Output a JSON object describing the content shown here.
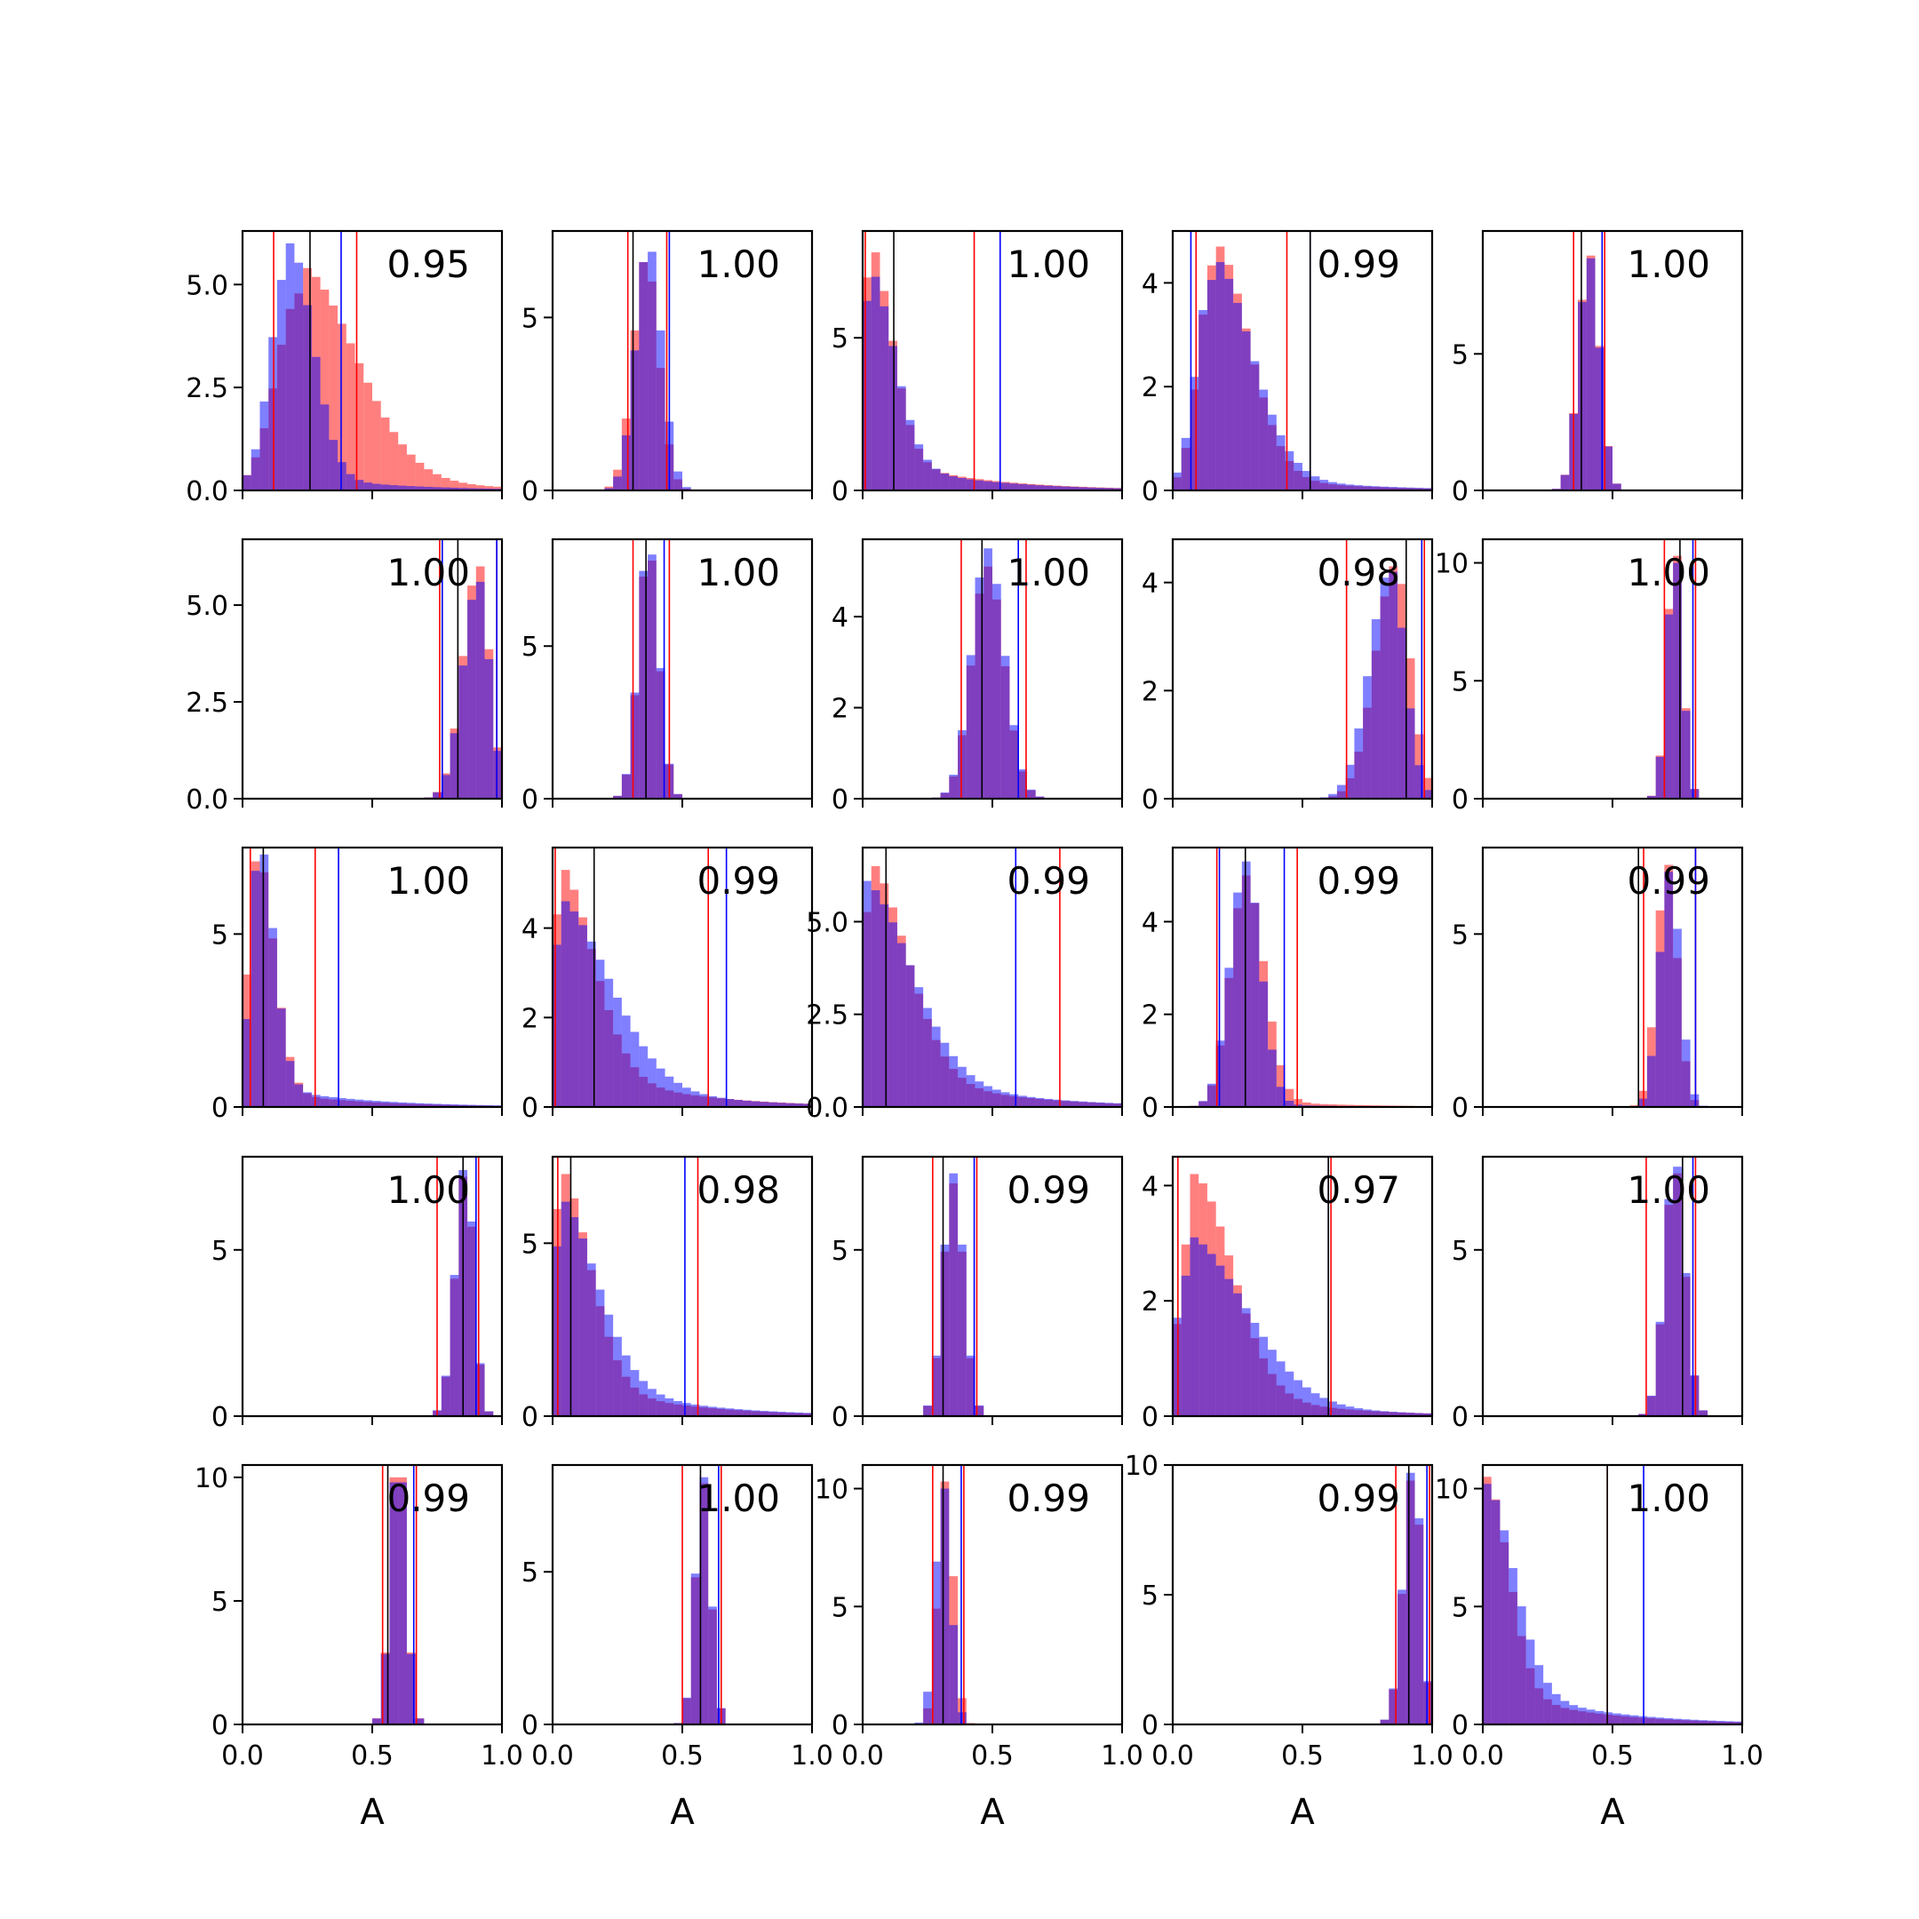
{
  "chart_data": {
    "type": "histogram-grid",
    "rows": 5,
    "cols": 5,
    "xlabel": "A",
    "xlim": [
      0.0,
      1.0
    ],
    "xticks": [
      0.0,
      0.5,
      1.0
    ],
    "xtick_labels": [
      "0.0",
      "0.5",
      "1.0"
    ],
    "grid": false,
    "series_colors": {
      "red": "#ff0000",
      "blue": "#0000ff",
      "black": "#000000"
    },
    "panels": [
      {
        "corr": "0.95",
        "ylim": [
          0,
          6.3
        ],
        "yticks": [
          0,
          2.5,
          5
        ],
        "ytick_labels": [
          "0.0",
          "2.5",
          "5.0"
        ],
        "red": {
          "center": 0.22,
          "width": 0.09,
          "peak": 5.4,
          "skew": 2.4,
          "tail": 0.25
        },
        "blue": {
          "center": 0.18,
          "width": 0.07,
          "peak": 6.0,
          "skew": 1.3,
          "tail": 0.12
        },
        "lines": {
          "red": [
            0.12,
            0.44
          ],
          "blue": [
            0.38
          ],
          "black": [
            0.26
          ]
        }
      },
      {
        "corr": "1.00",
        "ylim": [
          0,
          7.5
        ],
        "yticks": [
          0,
          5
        ],
        "ytick_labels": [
          "0",
          "5"
        ],
        "red": {
          "center": 0.36,
          "width": 0.05,
          "peak": 6.6,
          "skew": 1.0,
          "tail": 0
        },
        "blue": {
          "center": 0.37,
          "width": 0.05,
          "peak": 6.9,
          "skew": 1.0,
          "tail": 0
        },
        "lines": {
          "red": [
            0.29,
            0.44
          ],
          "blue": [
            0.45
          ],
          "black": [
            0.31
          ]
        }
      },
      {
        "corr": "1.00",
        "ylim": [
          0,
          8.5
        ],
        "yticks": [
          0,
          5
        ],
        "ytick_labels": [
          "0",
          "5"
        ],
        "red": {
          "center": 0.02,
          "width": 0.03,
          "peak": 7.8,
          "skew": 3.0,
          "tail": 0.3
        },
        "blue": {
          "center": 0.02,
          "width": 0.03,
          "peak": 7.0,
          "skew": 3.3,
          "tail": 0.3
        },
        "lines": {
          "red": [
            0.01,
            0.43
          ],
          "blue": [
            0.53
          ],
          "black": [
            0.12
          ]
        }
      },
      {
        "corr": "0.99",
        "ylim": [
          0,
          5.0
        ],
        "yticks": [
          0,
          2,
          4
        ],
        "ytick_labels": [
          "0",
          "2",
          "4"
        ],
        "red": {
          "center": 0.16,
          "width": 0.06,
          "peak": 4.7,
          "skew": 2.2,
          "tail": 0.15
        },
        "blue": {
          "center": 0.15,
          "width": 0.06,
          "peak": 4.4,
          "skew": 2.5,
          "tail": 0.2
        },
        "lines": {
          "red": [
            0.09,
            0.44
          ],
          "blue": [
            0.07,
            0.53
          ],
          "black": [
            0.53
          ]
        }
      },
      {
        "corr": "1.00",
        "ylim": [
          0,
          9.5
        ],
        "yticks": [
          0,
          5
        ],
        "ytick_labels": [
          "0",
          "5"
        ],
        "red": {
          "center": 0.41,
          "width": 0.04,
          "peak": 8.6,
          "skew": 1.0,
          "tail": 0
        },
        "blue": {
          "center": 0.41,
          "width": 0.04,
          "peak": 8.5,
          "skew": 1.0,
          "tail": 0
        },
        "lines": {
          "red": [
            0.35,
            0.47
          ],
          "blue": [
            0.46
          ],
          "black": [
            0.38
          ]
        }
      },
      {
        "corr": "1.00",
        "ylim": [
          0,
          6.7
        ],
        "yticks": [
          0,
          2.5,
          5
        ],
        "ytick_labels": [
          "0.0",
          "2.5",
          "5.0"
        ],
        "red": {
          "center": 0.91,
          "width": 0.06,
          "peak": 6.0,
          "skew": 0.7,
          "tail": 0
        },
        "blue": {
          "center": 0.91,
          "width": 0.06,
          "peak": 5.6,
          "skew": 0.7,
          "tail": 0
        },
        "lines": {
          "red": [
            0.76,
            0.98
          ],
          "blue": [
            0.77,
            0.98
          ],
          "black": [
            0.83
          ]
        }
      },
      {
        "corr": "1.00",
        "ylim": [
          0,
          8.5
        ],
        "yticks": [
          0,
          5
        ],
        "ytick_labels": [
          "0",
          "5"
        ],
        "red": {
          "center": 0.37,
          "width": 0.04,
          "peak": 7.8,
          "skew": 1.0,
          "tail": 0
        },
        "blue": {
          "center": 0.37,
          "width": 0.04,
          "peak": 8.0,
          "skew": 1.0,
          "tail": 0
        },
        "lines": {
          "red": [
            0.31,
            0.45
          ],
          "blue": [
            0.43
          ],
          "black": [
            0.36
          ]
        }
      },
      {
        "corr": "1.00",
        "ylim": [
          0,
          5.7
        ],
        "yticks": [
          0,
          2,
          4
        ],
        "ytick_labels": [
          "0",
          "2",
          "4"
        ],
        "red": {
          "center": 0.48,
          "width": 0.06,
          "peak": 5.1,
          "skew": 1.1,
          "tail": 0
        },
        "blue": {
          "center": 0.48,
          "width": 0.06,
          "peak": 5.5,
          "skew": 1.1,
          "tail": 0
        },
        "lines": {
          "red": [
            0.38,
            0.63
          ],
          "blue": [
            0.6
          ],
          "black": [
            0.46
          ]
        }
      },
      {
        "corr": "0.98",
        "ylim": [
          0,
          4.8
        ],
        "yticks": [
          0,
          2,
          4
        ],
        "ytick_labels": [
          "0",
          "2",
          "4"
        ],
        "red": {
          "center": 0.86,
          "width": 0.08,
          "peak": 4.3,
          "skew": 0.7,
          "tail": 0
        },
        "blue": {
          "center": 0.84,
          "width": 0.08,
          "peak": 4.2,
          "skew": 0.7,
          "tail": 0
        },
        "lines": {
          "red": [
            0.67,
            0.97
          ],
          "blue": [
            0.96
          ],
          "black": [
            0.9
          ]
        }
      },
      {
        "corr": "1.00",
        "ylim": [
          0,
          11
        ],
        "yticks": [
          0,
          5,
          10
        ],
        "ytick_labels": [
          "0",
          "5",
          "10"
        ],
        "red": {
          "center": 0.74,
          "width": 0.03,
          "peak": 10.3,
          "skew": 1.0,
          "tail": 0
        },
        "blue": {
          "center": 0.74,
          "width": 0.03,
          "peak": 10.0,
          "skew": 1.0,
          "tail": 0
        },
        "lines": {
          "red": [
            0.7,
            0.82
          ],
          "blue": [
            0.81
          ],
          "black": [
            0.76
          ]
        }
      },
      {
        "corr": "1.00",
        "ylim": [
          0,
          7.5
        ],
        "yticks": [
          0,
          5
        ],
        "ytick_labels": [
          "0",
          "5"
        ],
        "red": {
          "center": 0.05,
          "width": 0.03,
          "peak": 7.1,
          "skew": 2.3,
          "tail": 0.12
        },
        "blue": {
          "center": 0.06,
          "width": 0.03,
          "peak": 7.3,
          "skew": 2.0,
          "tail": 0.15
        },
        "lines": {
          "red": [
            0.03,
            0.28
          ],
          "blue": [
            0.37
          ],
          "black": [
            0.08
          ]
        }
      },
      {
        "corr": "0.99",
        "ylim": [
          0,
          5.8
        ],
        "yticks": [
          0,
          2,
          4
        ],
        "ytick_labels": [
          "0",
          "2",
          "4"
        ],
        "red": {
          "center": 0.02,
          "width": 0.03,
          "peak": 5.3,
          "skew": 4.5,
          "tail": 0.45
        },
        "blue": {
          "center": 0.02,
          "width": 0.04,
          "peak": 4.6,
          "skew": 5.0,
          "tail": 0.5
        },
        "lines": {
          "red": [
            0.01,
            0.6
          ],
          "blue": [
            0.67
          ],
          "black": [
            0.16
          ]
        }
      },
      {
        "corr": "0.99",
        "ylim": [
          0,
          7.0
        ],
        "yticks": [
          0,
          2.5,
          5
        ],
        "ytick_labels": [
          "0.0",
          "2.5",
          "5.0"
        ],
        "red": {
          "center": 0.02,
          "width": 0.03,
          "peak": 6.5,
          "skew": 5.0,
          "tail": 0.45
        },
        "blue": {
          "center": 0.01,
          "width": 0.03,
          "peak": 6.1,
          "skew": 6.0,
          "tail": 0.6
        },
        "lines": {
          "red": [
            0.76
          ],
          "blue": [
            0.59
          ],
          "black": [
            0.09
          ]
        }
      },
      {
        "corr": "0.99",
        "ylim": [
          0,
          5.6
        ],
        "yticks": [
          0,
          2,
          4
        ],
        "ytick_labels": [
          "0",
          "2",
          "4"
        ],
        "red": {
          "center": 0.28,
          "width": 0.06,
          "peak": 5.0,
          "skew": 1.2,
          "tail": 0.05
        },
        "blue": {
          "center": 0.28,
          "width": 0.06,
          "peak": 5.3,
          "skew": 1.0,
          "tail": 0.02
        },
        "lines": {
          "red": [
            0.17,
            0.48
          ],
          "blue": [
            0.18,
            0.43
          ],
          "black": [
            0.28
          ]
        }
      },
      {
        "corr": "0.99",
        "ylim": [
          0,
          7.5
        ],
        "yticks": [
          0,
          5
        ],
        "ytick_labels": [
          "0",
          "5"
        ],
        "red": {
          "center": 0.71,
          "width": 0.04,
          "peak": 7.0,
          "skew": 1.0,
          "tail": 0
        },
        "blue": {
          "center": 0.72,
          "width": 0.04,
          "peak": 6.8,
          "skew": 1.0,
          "tail": 0
        },
        "lines": {
          "red": [
            0.62,
            0.82
          ],
          "blue": [
            0.82
          ],
          "black": [
            0.6
          ]
        }
      },
      {
        "corr": "1.00",
        "ylim": [
          0,
          7.8
        ],
        "yticks": [
          0,
          5
        ],
        "ytick_labels": [
          "0",
          "5"
        ],
        "red": {
          "center": 0.86,
          "width": 0.04,
          "peak": 7.2,
          "skew": 0.8,
          "tail": 0
        },
        "blue": {
          "center": 0.86,
          "width": 0.04,
          "peak": 7.4,
          "skew": 0.8,
          "tail": 0
        },
        "lines": {
          "red": [
            0.75,
            0.91
          ],
          "blue": [
            0.9
          ],
          "black": [
            0.85
          ]
        }
      },
      {
        "corr": "0.98",
        "ylim": [
          0,
          7.5
        ],
        "yticks": [
          0,
          5
        ],
        "ytick_labels": [
          "0",
          "5"
        ],
        "red": {
          "center": 0.02,
          "width": 0.03,
          "peak": 7.0,
          "skew": 4.0,
          "tail": 0.35
        },
        "blue": {
          "center": 0.02,
          "width": 0.03,
          "peak": 6.2,
          "skew": 5.0,
          "tail": 0.5
        },
        "lines": {
          "red": [
            0.02,
            0.56
          ],
          "blue": [
            0.51
          ],
          "black": [
            0.07
          ]
        }
      },
      {
        "corr": "0.99",
        "ylim": [
          0,
          7.8
        ],
        "yticks": [
          0,
          5
        ],
        "ytick_labels": [
          "0",
          "5"
        ],
        "red": {
          "center": 0.35,
          "width": 0.04,
          "peak": 7.0,
          "skew": 1.0,
          "tail": 0
        },
        "blue": {
          "center": 0.35,
          "width": 0.04,
          "peak": 7.3,
          "skew": 1.0,
          "tail": 0
        },
        "lines": {
          "red": [
            0.27,
            0.44
          ],
          "blue": [
            0.43
          ],
          "black": [
            0.31
          ]
        }
      },
      {
        "corr": "0.97",
        "ylim": [
          0,
          4.5
        ],
        "yticks": [
          0,
          2,
          4
        ],
        "ytick_labels": [
          "0",
          "2",
          "4"
        ],
        "red": {
          "center": 0.08,
          "width": 0.05,
          "peak": 4.2,
          "skew": 3.0,
          "tail": 0.3
        },
        "blue": {
          "center": 0.06,
          "width": 0.05,
          "peak": 3.1,
          "skew": 4.5,
          "tail": 0.45
        },
        "lines": {
          "red": [
            0.02,
            0.61
          ],
          "blue": [
            0.6
          ],
          "black": [
            0.6
          ]
        }
      },
      {
        "corr": "1.00",
        "ylim": [
          0,
          7.8
        ],
        "yticks": [
          0,
          5
        ],
        "ytick_labels": [
          "0",
          "5"
        ],
        "red": {
          "center": 0.74,
          "width": 0.04,
          "peak": 7.3,
          "skew": 1.0,
          "tail": 0
        },
        "blue": {
          "center": 0.74,
          "width": 0.04,
          "peak": 7.5,
          "skew": 1.0,
          "tail": 0
        },
        "lines": {
          "red": [
            0.63,
            0.82
          ],
          "blue": [
            0.81
          ],
          "black": [
            0.77
          ]
        }
      },
      {
        "corr": "0.99",
        "ylim": [
          0,
          10.5
        ],
        "yticks": [
          0,
          5,
          10
        ],
        "ytick_labels": [
          "0",
          "5",
          "10"
        ],
        "red": {
          "center": 0.6,
          "width": 0.03,
          "peak": 10.0,
          "skew": 1.0,
          "tail": 0
        },
        "blue": {
          "center": 0.6,
          "width": 0.03,
          "peak": 9.8,
          "skew": 1.0,
          "tail": 0
        },
        "lines": {
          "red": [
            0.54,
            0.67
          ],
          "blue": [
            0.66
          ],
          "black": [
            0.56
          ]
        }
      },
      {
        "corr": "1.00",
        "ylim": [
          0,
          8.5
        ],
        "yticks": [
          0,
          5
        ],
        "ytick_labels": [
          "0",
          "5"
        ],
        "red": {
          "center": 0.58,
          "width": 0.03,
          "peak": 7.9,
          "skew": 1.0,
          "tail": 0
        },
        "blue": {
          "center": 0.58,
          "width": 0.03,
          "peak": 8.1,
          "skew": 1.0,
          "tail": 0
        },
        "lines": {
          "red": [
            0.5,
            0.65
          ],
          "blue": [
            0.64
          ],
          "black": [
            0.57
          ]
        }
      },
      {
        "corr": "0.99",
        "ylim": [
          0,
          11
        ],
        "yticks": [
          0,
          5,
          10
        ],
        "ytick_labels": [
          "0",
          "5",
          "10"
        ],
        "red": {
          "center": 0.32,
          "width": 0.03,
          "peak": 10.3,
          "skew": 1.0,
          "tail": 0
        },
        "blue": {
          "center": 0.31,
          "width": 0.03,
          "peak": 10.0,
          "skew": 1.0,
          "tail": 0
        },
        "lines": {
          "red": [
            0.27,
            0.39
          ],
          "blue": [
            0.38
          ],
          "black": [
            0.31
          ]
        }
      },
      {
        "corr": "0.99",
        "ylim": [
          0,
          10
        ],
        "yticks": [
          0,
          5,
          10
        ],
        "ytick_labels": [
          "0",
          "5",
          "10"
        ],
        "red": {
          "center": 0.93,
          "width": 0.04,
          "peak": 9.4,
          "skew": 0.7,
          "tail": 0
        },
        "blue": {
          "center": 0.93,
          "width": 0.04,
          "peak": 9.7,
          "skew": 0.7,
          "tail": 0
        },
        "lines": {
          "red": [
            0.86,
            0.99
          ],
          "blue": [
            0.98
          ],
          "black": [
            0.91
          ]
        }
      },
      {
        "corr": "1.00",
        "ylim": [
          0,
          11
        ],
        "yticks": [
          0,
          5,
          10
        ],
        "ytick_labels": [
          "0",
          "5",
          "10"
        ],
        "red": {
          "center": 0.01,
          "width": 0.02,
          "peak": 10.5,
          "skew": 4.5,
          "tail": 0.3
        },
        "blue": {
          "center": 0.01,
          "width": 0.02,
          "peak": 10.2,
          "skew": 5.5,
          "tail": 0.4
        },
        "lines": {
          "red": [
            0.48
          ],
          "blue": [
            0.62
          ],
          "black": [
            0.48
          ]
        }
      }
    ]
  }
}
